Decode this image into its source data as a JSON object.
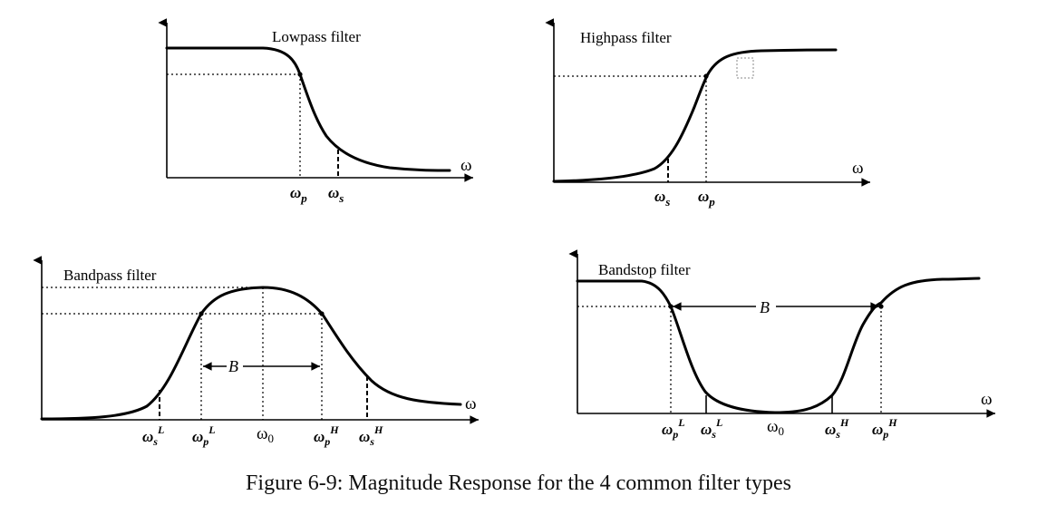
{
  "figure": {
    "caption": "Figure 6-9: Magnitude Response for the 4 common filter types",
    "axis_symbol": "ω",
    "bandwidth_label": "B"
  },
  "panels": {
    "lowpass": {
      "title": "Lowpass filter",
      "ticks": {
        "pass": "ω",
        "pass_sub": "p",
        "stop": "ω",
        "stop_sub": "s"
      }
    },
    "highpass": {
      "title": "Highpass filter",
      "ticks": {
        "stop": "ω",
        "stop_sub": "s",
        "pass": "ω",
        "pass_sub": "p"
      }
    },
    "bandpass": {
      "title": "Bandpass filter",
      "ticks": {
        "stop_low": "ω",
        "stop_low_sub": "s",
        "stop_low_sup": "L",
        "pass_low": "ω",
        "pass_low_sub": "p",
        "pass_low_sup": "L",
        "center": "ω",
        "center_sub": "0",
        "pass_high": "ω",
        "pass_high_sub": "p",
        "pass_high_sup": "H",
        "stop_high": "ω",
        "stop_high_sub": "s",
        "stop_high_sup": "H"
      }
    },
    "bandstop": {
      "title": "Bandstop filter",
      "ticks": {
        "pass_low": "ω",
        "pass_low_sub": "p",
        "pass_low_sup": "L",
        "stop_low": "ω",
        "stop_low_sub": "s",
        "stop_low_sup": "L",
        "center": "ω",
        "center_sub": "0",
        "stop_high": "ω",
        "stop_high_sub": "s",
        "stop_high_sup": "H",
        "pass_high": "ω",
        "pass_high_sub": "p",
        "pass_high_sup": "H"
      }
    }
  }
}
